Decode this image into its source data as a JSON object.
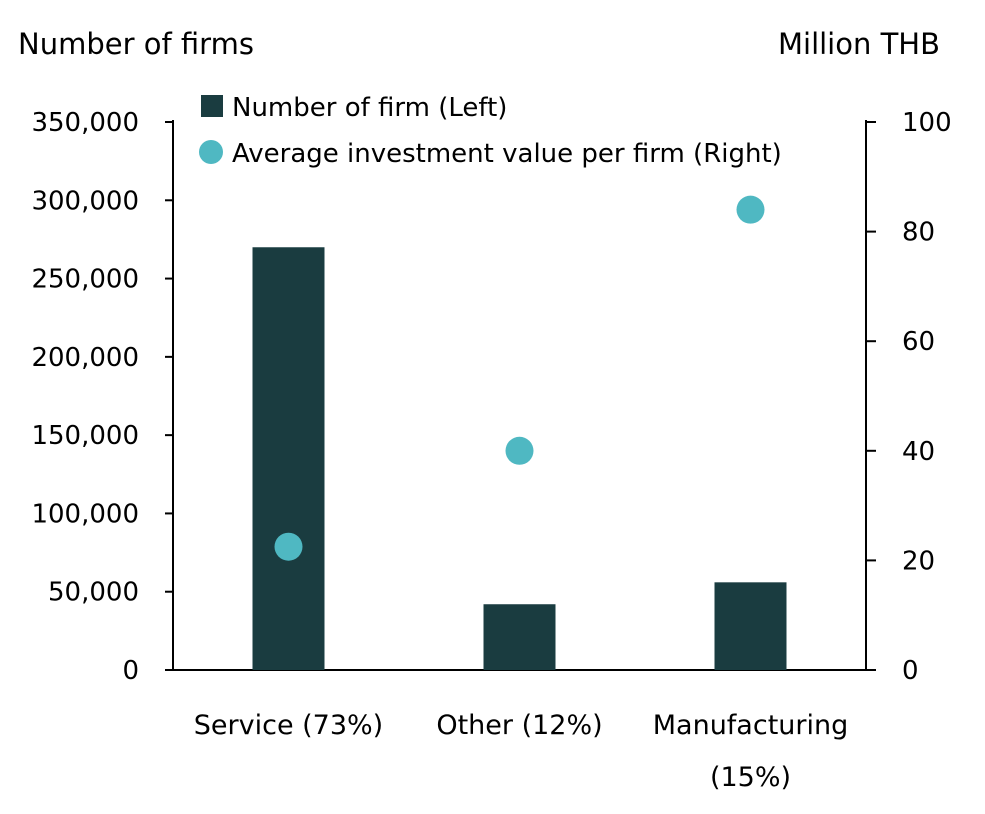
{
  "chart_data": {
    "type": "bar",
    "ylabel_left": "Number of firms",
    "ylabel_right": "Million THB",
    "categories": [
      [
        "Service (73%)"
      ],
      [
        "Other (12%)"
      ],
      [
        "Manufacturing",
        "(15%)"
      ]
    ],
    "series": [
      {
        "name": "Number of firm (Left)",
        "kind": "bar",
        "axis": "left",
        "color": "#1a3c40",
        "values": [
          270000,
          42000,
          56000
        ]
      },
      {
        "name": "Average investment value per firm (Right)",
        "kind": "scatter",
        "axis": "right",
        "color": "#4fb8c2",
        "values": [
          22.5,
          40,
          84
        ]
      }
    ],
    "y_left": {
      "min": 0,
      "max": 350000,
      "ticks": [
        0,
        50000,
        100000,
        150000,
        200000,
        250000,
        300000,
        350000
      ],
      "tick_labels": [
        "0",
        "50,000",
        "100,000",
        "150,000",
        "200,000",
        "250,000",
        "300,000",
        "350,000"
      ]
    },
    "y_right": {
      "min": 0,
      "max": 100,
      "ticks": [
        0,
        20,
        40,
        60,
        80,
        100
      ],
      "tick_labels": [
        "0",
        "20",
        "40",
        "60",
        "80",
        "100"
      ]
    },
    "legend_position": "top",
    "grid": false
  }
}
